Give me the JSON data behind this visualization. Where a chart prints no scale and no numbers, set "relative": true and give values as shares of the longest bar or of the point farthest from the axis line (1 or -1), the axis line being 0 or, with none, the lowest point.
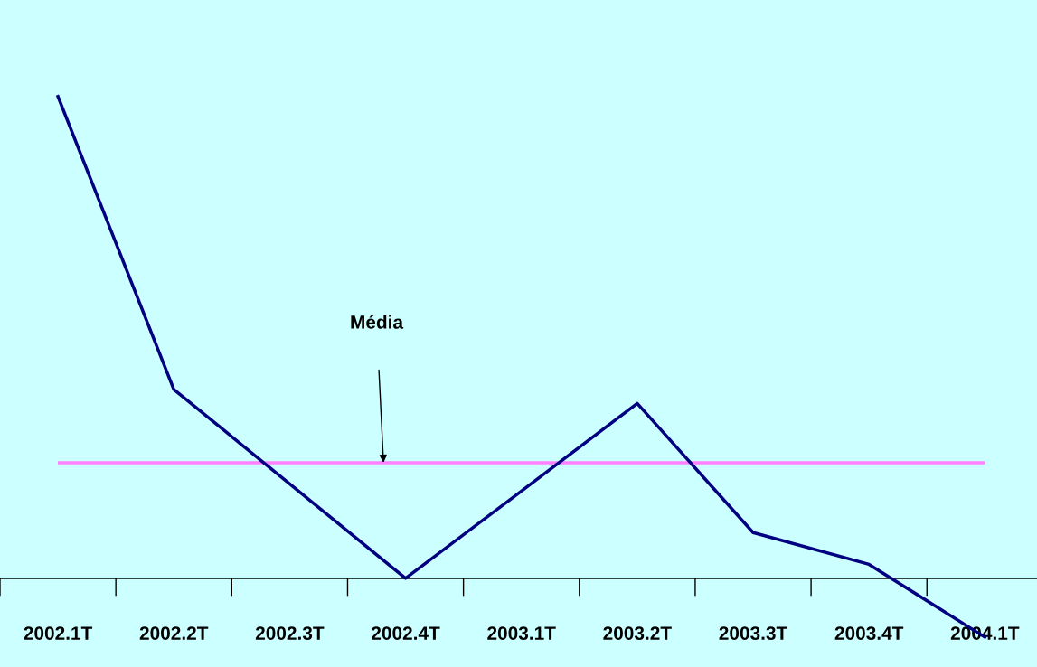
{
  "chart_data": {
    "type": "line",
    "relative": true,
    "categories": [
      "2002.1T",
      "2002.2T",
      "2002.3T",
      "2002.4T",
      "2003.1T",
      "2003.2T",
      "2003.3T",
      "2003.4T",
      "2004.1T"
    ],
    "series": [
      {
        "color": "#000080",
        "values": [
          1,
          0.392,
          0.196,
          0,
          0.181,
          0.363,
          0.095,
          0.029,
          -0.122
        ]
      }
    ],
    "ref_lines": [
      {
        "axis": "y",
        "value": 0.24,
        "color": "#ff80ff"
      }
    ],
    "annotations": [
      "Média"
    ],
    "grid": false,
    "legend": false,
    "marker": "none",
    "line_style": "solid"
  }
}
